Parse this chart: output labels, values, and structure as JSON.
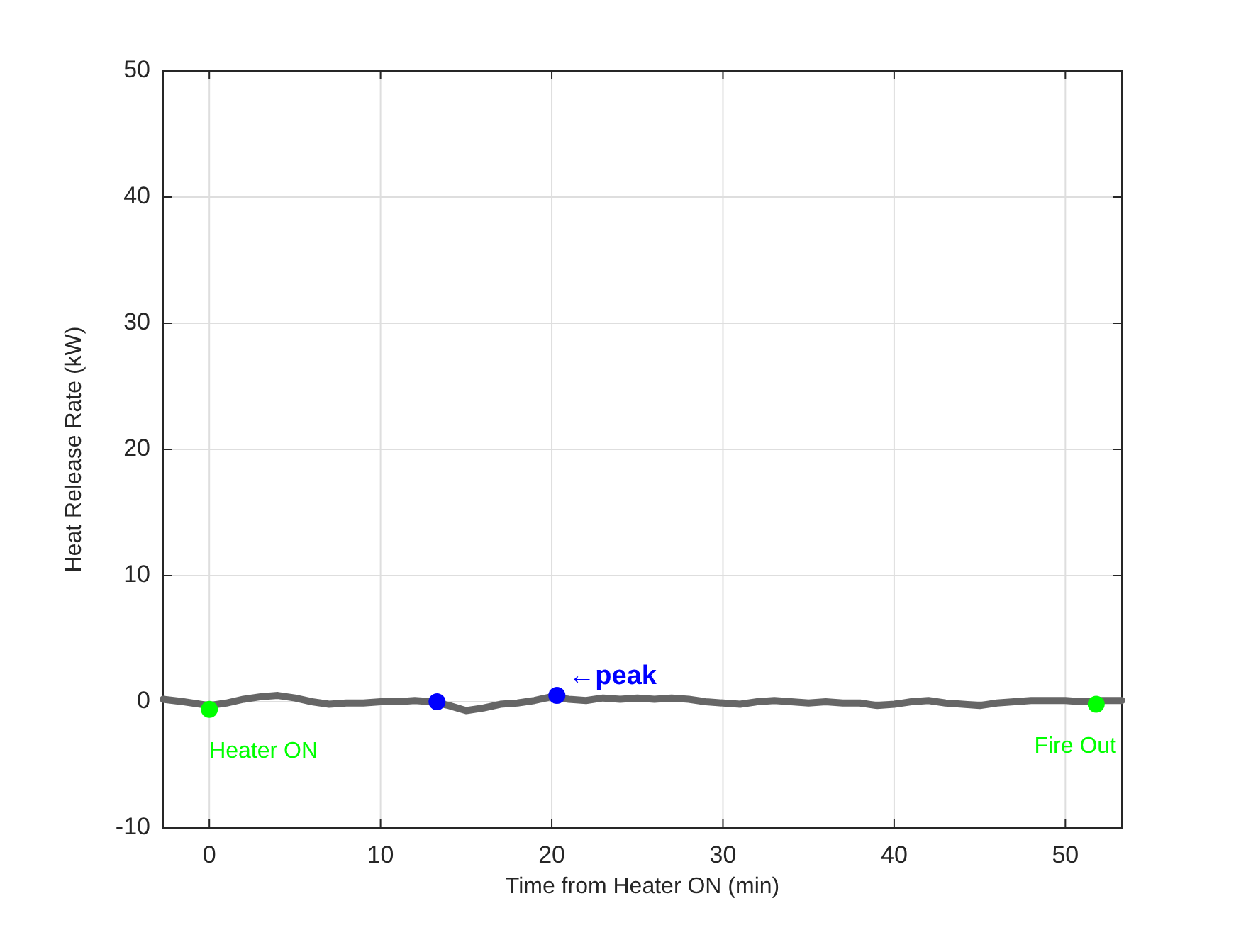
{
  "chart_data": {
    "type": "line",
    "xlabel": "Time from Heater ON (min)",
    "ylabel": "Heat Release Rate (kW)",
    "xlim": [
      -2.7,
      53.3
    ],
    "ylim": [
      -10,
      50
    ],
    "xticks": [
      0,
      10,
      20,
      30,
      40,
      50
    ],
    "yticks": [
      -10,
      0,
      10,
      20,
      30,
      40,
      50
    ],
    "grid": true,
    "series": [
      {
        "type": "line",
        "color": "#666666",
        "marker": "none",
        "x": [
          -2.7,
          -1.5,
          0,
          1,
          2,
          3,
          4,
          5,
          6,
          7,
          8,
          9,
          10,
          11,
          12,
          13,
          14,
          15,
          16,
          17,
          18,
          19,
          20,
          21,
          22,
          23,
          24,
          25,
          26,
          27,
          28,
          29,
          30,
          31,
          32,
          33,
          34,
          35,
          36,
          37,
          38,
          39,
          40,
          41,
          42,
          43,
          44,
          45,
          46,
          47,
          48,
          49,
          50,
          51,
          52,
          53.3
        ],
        "values": [
          0.2,
          0,
          -0.3,
          -0.1,
          0.2,
          0.4,
          0.5,
          0.3,
          0,
          -0.2,
          -0.1,
          -0.1,
          0,
          0,
          0.1,
          0,
          -0.3,
          -0.7,
          -0.5,
          -0.2,
          -0.1,
          0.1,
          0.4,
          0.2,
          0.1,
          0.3,
          0.2,
          0.3,
          0.2,
          0.3,
          0.2,
          0,
          -0.1,
          -0.2,
          0,
          0.1,
          0,
          -0.1,
          0,
          -0.1,
          -0.1,
          -0.3,
          -0.2,
          0,
          0.1,
          -0.1,
          -0.2,
          -0.3,
          -0.1,
          0,
          0.1,
          0.1,
          0.1,
          0,
          0.1,
          0.1
        ]
      },
      {
        "type": "scatter",
        "color": "#00ff00",
        "marker": "circle",
        "x": [
          0,
          51.8
        ],
        "values": [
          -0.6,
          -0.2
        ]
      },
      {
        "type": "scatter",
        "color": "#0000ff",
        "marker": "circle",
        "x": [
          13.3,
          20.3
        ],
        "values": [
          0,
          0.5
        ]
      }
    ],
    "annotations": [
      {
        "text": "Heater ON",
        "x": 0,
        "y": -0.6
      },
      {
        "text": "Fire Out",
        "x": 51.8,
        "y": -0.2
      },
      {
        "text": "←peak",
        "x": 20.3,
        "y": 0.5
      }
    ]
  }
}
